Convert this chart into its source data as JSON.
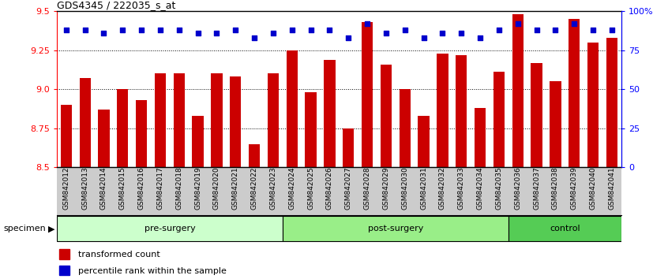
{
  "title": "GDS4345 / 222035_s_at",
  "categories": [
    "GSM842012",
    "GSM842013",
    "GSM842014",
    "GSM842015",
    "GSM842016",
    "GSM842017",
    "GSM842018",
    "GSM842019",
    "GSM842020",
    "GSM842021",
    "GSM842022",
    "GSM842023",
    "GSM842024",
    "GSM842025",
    "GSM842026",
    "GSM842027",
    "GSM842028",
    "GSM842029",
    "GSM842030",
    "GSM842031",
    "GSM842032",
    "GSM842033",
    "GSM842034",
    "GSM842035",
    "GSM842036",
    "GSM842037",
    "GSM842038",
    "GSM842039",
    "GSM842040",
    "GSM842041"
  ],
  "red_values": [
    8.9,
    9.07,
    8.87,
    9.0,
    8.93,
    9.1,
    9.1,
    8.83,
    9.1,
    9.08,
    8.65,
    9.1,
    9.25,
    8.98,
    9.19,
    8.75,
    9.43,
    9.16,
    9.0,
    8.83,
    9.23,
    9.22,
    8.88,
    9.11,
    9.48,
    9.17,
    9.05,
    9.45,
    9.3,
    9.33
  ],
  "blue_values": [
    88,
    88,
    86,
    88,
    88,
    88,
    88,
    86,
    86,
    88,
    83,
    86,
    88,
    88,
    88,
    83,
    92,
    86,
    88,
    83,
    86,
    86,
    83,
    88,
    92,
    88,
    88,
    92,
    88,
    88
  ],
  "ylim_left": [
    8.5,
    9.5
  ],
  "ylim_right": [
    0,
    100
  ],
  "yticks_left": [
    8.5,
    8.75,
    9.0,
    9.25,
    9.5
  ],
  "yticks_right": [
    0,
    25,
    50,
    75,
    100
  ],
  "ytick_labels_right": [
    "0",
    "25",
    "50",
    "75",
    "100%"
  ],
  "grid_lines": [
    8.75,
    9.0,
    9.25
  ],
  "bar_color": "#cc0000",
  "dot_color": "#0000cc",
  "pre_surgery_indices": [
    0,
    11
  ],
  "post_surgery_indices": [
    12,
    23
  ],
  "control_indices": [
    24,
    29
  ],
  "group_colors": {
    "pre-surgery": "#ccffcc",
    "post-surgery": "#99ee88",
    "control": "#55cc55"
  },
  "xlabel": "specimen",
  "legend_red": "transformed count",
  "legend_blue": "percentile rank within the sample",
  "bar_width": 0.6
}
